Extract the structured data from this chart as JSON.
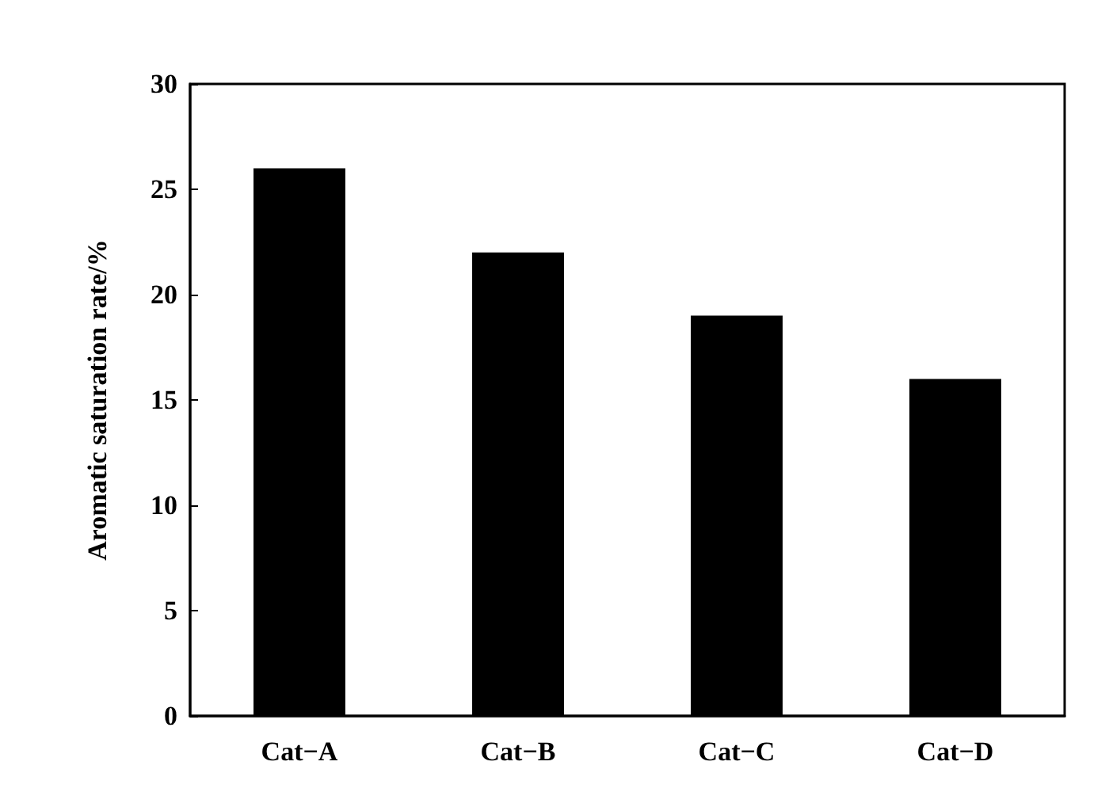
{
  "chart_data": {
    "type": "bar",
    "ylabel": "Aromatic saturation rate/%",
    "categories": [
      "Cat−A",
      "Cat−B",
      "Cat−C",
      "Cat−D"
    ],
    "values": [
      26,
      22,
      19,
      16
    ],
    "color": "#000000",
    "ylim": [
      0,
      30
    ],
    "yticks": [
      0,
      5,
      10,
      15,
      20,
      25,
      30
    ],
    "grid": false
  }
}
